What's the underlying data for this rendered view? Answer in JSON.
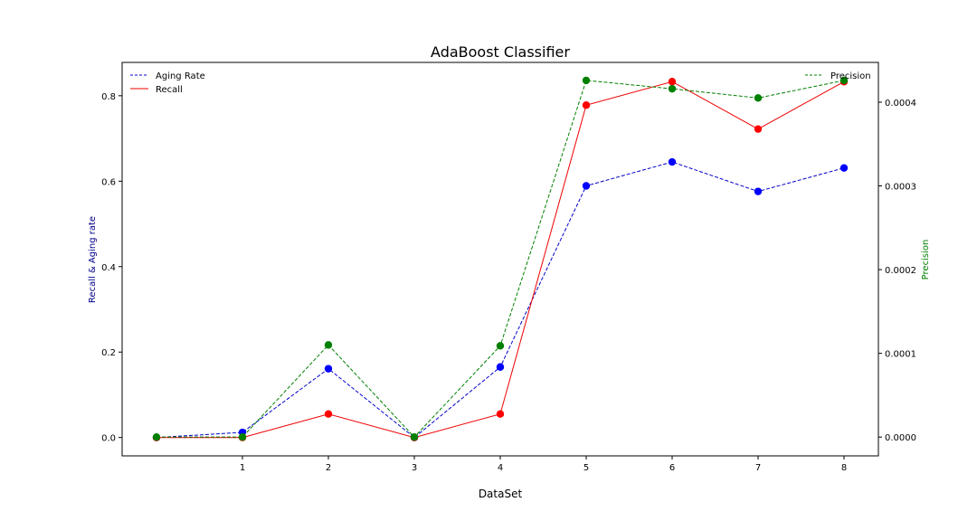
{
  "chart_data": {
    "type": "line",
    "title": "AdaBoost Classifier",
    "xlabel": "DataSet",
    "ylabel_left": "Recall & Aging rate",
    "ylabel_right": "Precision",
    "x": [
      0,
      1,
      2,
      3,
      4,
      5,
      6,
      7,
      8
    ],
    "x_ticks": [
      "1",
      "2",
      "3",
      "4",
      "5",
      "6",
      "7",
      "8"
    ],
    "x_tick_values": [
      1,
      2,
      3,
      4,
      5,
      6,
      7,
      8
    ],
    "ylim_left": [
      -0.043,
      0.878
    ],
    "yticks_left": [
      "0.0",
      "0.2",
      "0.4",
      "0.6",
      "0.8"
    ],
    "ytick_values_left": [
      0,
      0.2,
      0.4,
      0.6,
      0.8
    ],
    "ylim_right": [
      -2.25e-05,
      0.0004475
    ],
    "yticks_right": [
      "0.0000",
      "0.0001",
      "0.0002",
      "0.0003",
      "0.0004"
    ],
    "ytick_values_right": [
      0,
      0.0001,
      0.0002,
      0.0003,
      0.0004
    ],
    "grid": false,
    "legend_left": "top-left",
    "legend_right": "top-right",
    "series": [
      {
        "name": "Aging Rate",
        "axis": "left",
        "style": "dashed",
        "color": "#0000cc",
        "marker_color": "#0000ff",
        "values": [
          0.0,
          0.012,
          0.161,
          0.0,
          0.165,
          0.589,
          0.645,
          0.576,
          0.631
        ]
      },
      {
        "name": "Recall",
        "axis": "left",
        "style": "solid",
        "color": "#ee0000",
        "marker_color": "#ff0000",
        "values": [
          0.0,
          0.0,
          0.055,
          0.0,
          0.055,
          0.778,
          0.833,
          0.722,
          0.833
        ]
      },
      {
        "name": "Precision",
        "axis": "right",
        "style": "dashed",
        "color": "#008000",
        "marker_color": "#008000",
        "values": [
          0.0,
          0.0,
          0.00011,
          0.0,
          0.000109,
          0.000426,
          0.000416,
          0.000405,
          0.000426
        ]
      }
    ]
  }
}
